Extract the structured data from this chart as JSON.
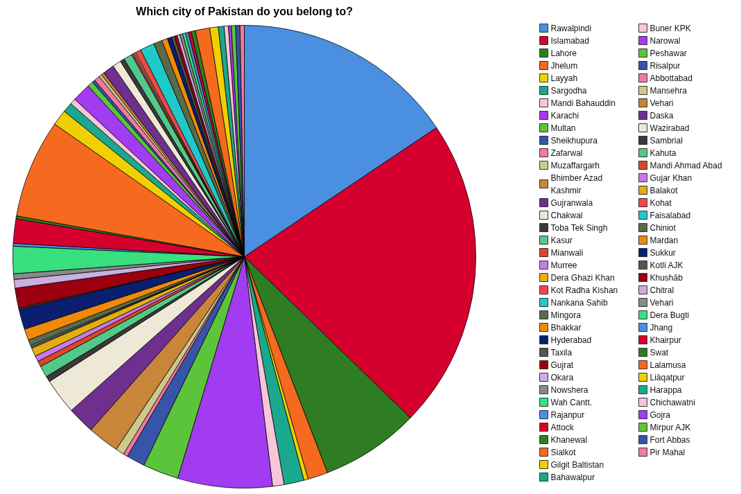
{
  "chart_data": {
    "type": "pie",
    "title": "Which city of Pakistan do you belong to?",
    "legend": "right",
    "categories": [
      "Rawalpindi",
      "Islamabad",
      "Lahore",
      "Jhelum",
      "Layyah",
      "Sargodha",
      "Mandi Bahauddin",
      "Karachi",
      "Multan",
      "Sheikhupura",
      "Zafarwal",
      "Muzaffargarh",
      "Bhimber Azad Kashmir",
      "Gujranwala",
      "Chakwal",
      "Toba Tek Singh",
      "Kasur",
      "Mianwali",
      "Murree",
      "Dera Ghazi Khan",
      "Kot Radha Kishan",
      "Nankana Sahib",
      "Mingora",
      "Bhakkar",
      "Hyderabad",
      "Taxila",
      "Gujrat",
      "Okara",
      "Nowshera",
      "Wah Cantt.",
      "Rajanpur",
      "Attock",
      "Khanewal",
      "Sialkot",
      "Gilgit Baltistan",
      "Bahawalpur",
      "Buner KPK",
      "Narowal",
      "Peshawar",
      "Risalpur",
      "Abbottabad",
      "Mansehra",
      "Vehari",
      "Daska",
      "Wazirabad",
      "Sambrial",
      "Kahuta",
      "Mandi Ahmad Abad",
      "Gujar Khan",
      "Balakot",
      "Kohat",
      "Faisalabad",
      "Chiniot",
      "Mardan",
      "Sukkur",
      "Kotli AJK",
      "Khushāb",
      "Chitral",
      "Vehari",
      "Dera Bugti",
      "Jhang",
      "Khairpur",
      "Swat",
      "Lalamusa",
      "Liāqatpur",
      "Harappa",
      "Chichawatni",
      "Gojra",
      "Mirpur AJK",
      "Fort Abbas",
      "Pir Mahal"
    ],
    "values": [
      15.6,
      21.7,
      6.9,
      1.4,
      0.3,
      1.4,
      0.8,
      6.6,
      2.5,
      1.3,
      0.3,
      0.6,
      2.2,
      1.9,
      2.5,
      0.4,
      0.8,
      0.4,
      0.4,
      0.6,
      0.1,
      0.1,
      0.4,
      0.8,
      1.4,
      0.1,
      1.4,
      0.6,
      0.4,
      1.9,
      0.2,
      1.7,
      0.2,
      6.9,
      1.1,
      0.7,
      0.4,
      1.3,
      0.4,
      0.2,
      0.4,
      0.2,
      0.2,
      0.8,
      0.6,
      0.3,
      0.6,
      0.1,
      0.1,
      0.1,
      0.4,
      1.0,
      0.6,
      0.4,
      0.3,
      0.2,
      0.2,
      0.2,
      0.2,
      0.2,
      0.2,
      0.2,
      0.3,
      1.0,
      0.6,
      0.4,
      0.3,
      0.2,
      0.3,
      0.3,
      0.3
    ],
    "colors": [
      "#4a8fe0",
      "#d6002f",
      "#2e7d22",
      "#f56a1f",
      "#f0d000",
      "#1aa88e",
      "#f7c6d9",
      "#a13cf0",
      "#5cc43a",
      "#3654a8",
      "#f07aa0",
      "#cdc98c",
      "#c9853a",
      "#6e2f8f",
      "#eee8d6",
      "#3a3a3a",
      "#52c98a",
      "#d9482b",
      "#c97ae8",
      "#e0b010",
      "#f0484a",
      "#20c9c9",
      "#5a6b4a",
      "#ee8a0a",
      "#0a1f70",
      "#505a50",
      "#9a0010",
      "#c9b0e0",
      "#8a8a8a",
      "#38e080",
      "#4a8fe0",
      "#d6002f",
      "#2e7d22",
      "#f56a1f",
      "#f0d000",
      "#1aa88e",
      "#f7c6d9",
      "#a13cf0",
      "#5cc43a",
      "#3654a8",
      "#f07aa0",
      "#cdc98c",
      "#c9853a",
      "#6e2f8f",
      "#eee8d6",
      "#3a3a3a",
      "#52c98a",
      "#d9482b",
      "#c97ae8",
      "#e0b010",
      "#f0484a",
      "#20c9c9",
      "#5a6b4a",
      "#ee8a0a",
      "#0a1f70",
      "#505a50",
      "#9a0010",
      "#c9b0e0",
      "#8a8a8a",
      "#38e080",
      "#4a8fe0",
      "#d6002f",
      "#2e7d22",
      "#f56a1f",
      "#f0d000",
      "#1aa88e",
      "#f7c6d9",
      "#a13cf0",
      "#5cc43a",
      "#3654a8",
      "#f07aa0"
    ]
  }
}
